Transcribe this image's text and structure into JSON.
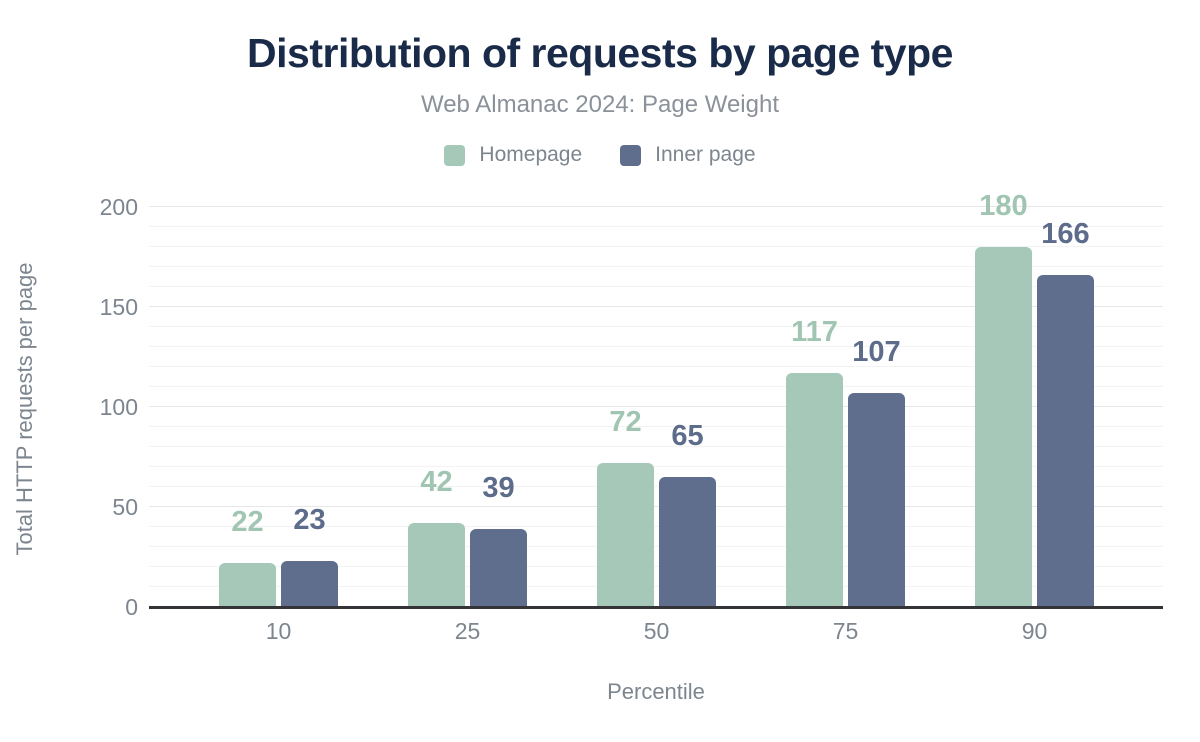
{
  "header": {
    "title": "Distribution of requests by page type",
    "subtitle": "Web Almanac 2024: Page Weight"
  },
  "chart_data": {
    "type": "bar",
    "title": "Distribution of requests by page type",
    "subtitle": "Web Almanac 2024: Page Weight",
    "categories": [
      "10",
      "25",
      "50",
      "75",
      "90"
    ],
    "series": [
      {
        "name": "Homepage",
        "color": "#a6c8b8",
        "label_color": "#a0c5b2",
        "values": [
          22,
          42,
          72,
          117,
          180
        ]
      },
      {
        "name": "Inner page",
        "color": "#5e6e8c",
        "label_color": "#5d6c8b",
        "values": [
          23,
          39,
          65,
          107,
          166
        ]
      }
    ],
    "xlabel": "Percentile",
    "ylabel": "Total HTTP requests per page",
    "ylim": [
      0,
      200
    ],
    "yticks": [
      0,
      50,
      100,
      150,
      200
    ],
    "grid": {
      "minor_step": 10,
      "major_step": 50,
      "on": true
    },
    "legend_position": "top",
    "data_labels": true
  },
  "colors": {
    "title": "#1a2b49",
    "subtitle": "#8b9199",
    "axis_text": "#7d868f",
    "legend_text": "#7d858e",
    "baseline": "#343438",
    "gridline_minor": "#f3f3f3",
    "gridline_major": "#e7e7e7",
    "background": "#ffffff"
  }
}
